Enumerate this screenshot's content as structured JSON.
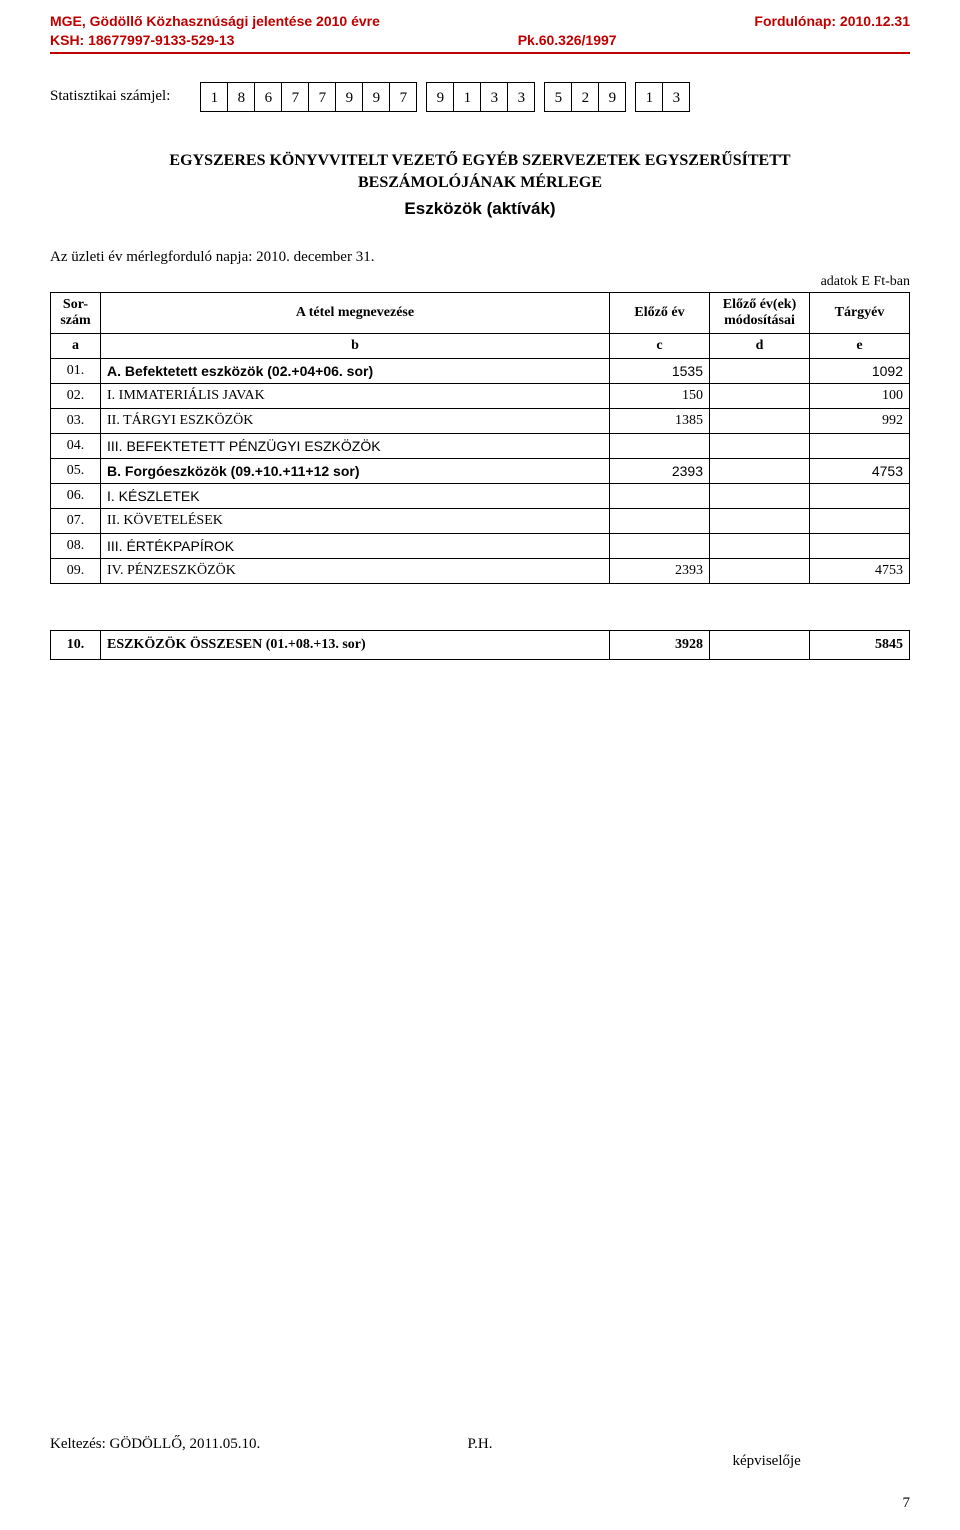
{
  "header": {
    "left_line1": "MGE, Gödöllő Közhasznúsági jelentése 2010 évre",
    "left_line2": "KSH: 18677997-9133-529-13",
    "mid_line1": "",
    "mid_line2": "Pk.60.326/1997",
    "right_line1": "Fordulónap: 2010.12.31",
    "right_line2": ""
  },
  "stat": {
    "label": "Statisztikai számjel:",
    "digits": [
      "1",
      "8",
      "6",
      "7",
      "7",
      "9",
      "9",
      "7",
      "9",
      "1",
      "3",
      "3",
      "5",
      "2",
      "9",
      "1",
      "3"
    ],
    "group_sizes": [
      8,
      4,
      3,
      2
    ]
  },
  "title": {
    "line1": "EGYSZERES KÖNYVVITELT VEZETŐ EGYÉB SZERVEZETEK EGYSZERŰSÍTETT",
    "line2": "BESZÁMOLÓJÁNAK MÉRLEGE",
    "sub": "Eszközök (aktívák)"
  },
  "date_line": "Az üzleti év mérlegforduló napja: 2010. december  31.",
  "unit_line": "adatok E Ft-ban",
  "cols": {
    "sor": "Sor-\nszám",
    "name": "A tétel megnevezése",
    "prev": "Előző év",
    "mod": "Előző év(ek)\nmódosításai",
    "curr": "Tárgyév",
    "a": "a",
    "b": "b",
    "c": "c",
    "d": "d",
    "e": "e"
  },
  "rows": [
    {
      "n": "01.",
      "name": "A. Befektetett eszközök (02.+04+06. sor)",
      "prev": "1535",
      "mod": "",
      "curr": "1092",
      "bold": true,
      "serif": false
    },
    {
      "n": "02.",
      "name": "I. IMMATERIÁLIS JAVAK",
      "prev": "150",
      "mod": "",
      "curr": "100",
      "bold": false,
      "serif": true
    },
    {
      "n": "03.",
      "name": "II. TÁRGYI ESZKÖZÖK",
      "prev": "1385",
      "mod": "",
      "curr": "992",
      "bold": false,
      "serif": true
    },
    {
      "n": "04.",
      "name": "III. BEFEKTETETT PÉNZÜGYI ESZKÖZÖK",
      "prev": "",
      "mod": "",
      "curr": "",
      "bold": false,
      "serif": false
    },
    {
      "n": "05.",
      "name": "B. Forgóeszközök (09.+10.+11+12 sor)",
      "prev": "2393",
      "mod": "",
      "curr": "4753",
      "bold": true,
      "serif": false
    },
    {
      "n": "06.",
      "name": "I. KÉSZLETEK",
      "prev": "",
      "mod": "",
      "curr": "",
      "bold": false,
      "serif": false
    },
    {
      "n": "07.",
      "name": "II. KÖVETELÉSEK",
      "prev": "",
      "mod": "",
      "curr": "",
      "bold": false,
      "serif": true
    },
    {
      "n": "08.",
      "name": "III. ÉRTÉKPAPÍROK",
      "prev": "",
      "mod": "",
      "curr": "",
      "bold": false,
      "serif": false
    },
    {
      "n": "09.",
      "name": "IV. PÉNZESZKÖZÖK",
      "prev": "2393",
      "mod": "",
      "curr": "4753",
      "bold": false,
      "serif": true
    }
  ],
  "total": {
    "n": "10.",
    "name": "ESZKÖZÖK ÖSSZESEN (01.+08.+13. sor)",
    "prev": "3928",
    "mod": "",
    "curr": "5845"
  },
  "footer": {
    "date": "Keltezés:  GÖDÖLLŐ, 2011.05.10.",
    "ph": "P.H.",
    "rep": "képviselője"
  },
  "page": "7"
}
